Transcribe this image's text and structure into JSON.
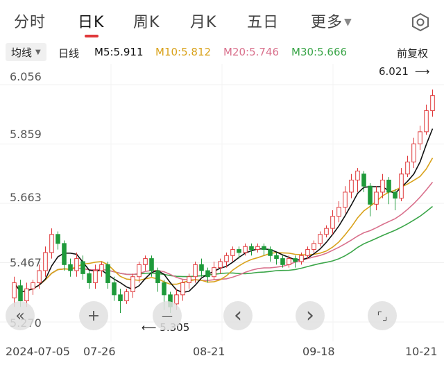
{
  "tabs": [
    {
      "label": "分时",
      "active": false
    },
    {
      "label": "日K",
      "active": true
    },
    {
      "label": "周K",
      "active": false
    },
    {
      "label": "月K",
      "active": false
    },
    {
      "label": "五日",
      "active": false
    },
    {
      "label": "更多",
      "active": false
    }
  ],
  "settings_icon": "hexagon-gear-icon",
  "indicator_bar": {
    "selector_label": "均线",
    "period_label": "日线",
    "ma5": {
      "label": "M5:5.911",
      "color": "#111111"
    },
    "ma10": {
      "label": "M10:5.812",
      "color": "#d9a21b"
    },
    "ma20": {
      "label": "M20:5.746",
      "color": "#d9708c"
    },
    "ma30": {
      "label": "M30:5.666",
      "color": "#3aa548"
    },
    "adjust_label": "前复权"
  },
  "colors": {
    "up": "#e0383a",
    "down": "#1e9a3a",
    "accent": "#e0383a"
  },
  "chart_data": {
    "type": "candlestick",
    "y_ticks": [
      "6.056",
      "5.859",
      "5.663",
      "5.467",
      "5.270"
    ],
    "x_ticks": [
      "2024-07-05",
      "07-26",
      "08-21",
      "09-18",
      "10-21"
    ],
    "annotations": {
      "high": "6.021",
      "low": "5.305"
    },
    "ylim": [
      5.27,
      6.056
    ],
    "candles": [
      [
        5.35,
        5.4,
        5.32,
        5.42
      ],
      [
        5.39,
        5.34,
        5.32,
        5.41
      ],
      [
        5.34,
        5.38,
        5.32,
        5.4
      ],
      [
        5.38,
        5.4,
        5.36,
        5.41
      ],
      [
        5.4,
        5.44,
        5.38,
        5.46
      ],
      [
        5.44,
        5.5,
        5.42,
        5.52
      ],
      [
        5.5,
        5.56,
        5.48,
        5.58
      ],
      [
        5.56,
        5.53,
        5.51,
        5.57
      ],
      [
        5.53,
        5.46,
        5.44,
        5.54
      ],
      [
        5.46,
        5.44,
        5.42,
        5.48
      ],
      [
        5.44,
        5.48,
        5.42,
        5.5
      ],
      [
        5.47,
        5.43,
        5.41,
        5.49
      ],
      [
        5.43,
        5.4,
        5.38,
        5.44
      ],
      [
        5.4,
        5.44,
        5.38,
        5.46
      ],
      [
        5.44,
        5.46,
        5.42,
        5.47
      ],
      [
        5.46,
        5.4,
        5.38,
        5.47
      ],
      [
        5.4,
        5.36,
        5.34,
        5.42
      ],
      [
        5.36,
        5.34,
        5.3,
        5.38
      ],
      [
        5.34,
        5.37,
        5.33,
        5.38
      ],
      [
        5.37,
        5.42,
        5.35,
        5.43
      ],
      [
        5.42,
        5.46,
        5.4,
        5.47
      ],
      [
        5.46,
        5.48,
        5.44,
        5.49
      ],
      [
        5.48,
        5.44,
        5.42,
        5.49
      ],
      [
        5.44,
        5.4,
        5.37,
        5.45
      ],
      [
        5.4,
        5.36,
        5.31,
        5.41
      ],
      [
        5.36,
        5.32,
        5.3,
        5.37
      ],
      [
        5.33,
        5.36,
        5.31,
        5.38
      ],
      [
        5.36,
        5.4,
        5.34,
        5.41
      ],
      [
        5.4,
        5.42,
        5.38,
        5.43
      ],
      [
        5.42,
        5.46,
        5.4,
        5.47
      ],
      [
        5.46,
        5.44,
        5.42,
        5.48
      ],
      [
        5.44,
        5.42,
        5.4,
        5.45
      ],
      [
        5.42,
        5.45,
        5.41,
        5.47
      ],
      [
        5.45,
        5.47,
        5.43,
        5.48
      ],
      [
        5.47,
        5.49,
        5.45,
        5.5
      ],
      [
        5.49,
        5.51,
        5.47,
        5.52
      ],
      [
        5.51,
        5.5,
        5.48,
        5.52
      ],
      [
        5.5,
        5.52,
        5.49,
        5.53
      ],
      [
        5.52,
        5.51,
        5.49,
        5.53
      ],
      [
        5.51,
        5.52,
        5.5,
        5.53
      ],
      [
        5.52,
        5.51,
        5.49,
        5.53
      ],
      [
        5.51,
        5.49,
        5.47,
        5.52
      ],
      [
        5.49,
        5.48,
        5.46,
        5.5
      ],
      [
        5.48,
        5.46,
        5.45,
        5.49
      ],
      [
        5.46,
        5.48,
        5.45,
        5.49
      ],
      [
        5.48,
        5.47,
        5.45,
        5.49
      ],
      [
        5.47,
        5.49,
        5.46,
        5.5
      ],
      [
        5.49,
        5.51,
        5.48,
        5.52
      ],
      [
        5.51,
        5.53,
        5.5,
        5.54
      ],
      [
        5.53,
        5.56,
        5.52,
        5.57
      ],
      [
        5.56,
        5.58,
        5.55,
        5.59
      ],
      [
        5.58,
        5.62,
        5.56,
        5.64
      ],
      [
        5.62,
        5.65,
        5.6,
        5.67
      ],
      [
        5.65,
        5.7,
        5.63,
        5.72
      ],
      [
        5.7,
        5.74,
        5.68,
        5.76
      ],
      [
        5.74,
        5.77,
        5.7,
        5.78
      ],
      [
        5.76,
        5.72,
        5.7,
        5.77
      ],
      [
        5.72,
        5.66,
        5.62,
        5.73
      ],
      [
        5.66,
        5.7,
        5.64,
        5.72
      ],
      [
        5.7,
        5.74,
        5.68,
        5.76
      ],
      [
        5.74,
        5.7,
        5.66,
        5.75
      ],
      [
        5.7,
        5.68,
        5.64,
        5.71
      ],
      [
        5.68,
        5.76,
        5.67,
        5.78
      ],
      [
        5.76,
        5.8,
        5.75,
        5.82
      ],
      [
        5.8,
        5.86,
        5.78,
        5.88
      ],
      [
        5.86,
        5.9,
        5.84,
        5.92
      ],
      [
        5.9,
        5.97,
        5.89,
        5.99
      ],
      [
        5.97,
        6.02,
        5.95,
        6.04
      ]
    ]
  },
  "nav_buttons": [
    {
      "name": "scroll-left-button",
      "icon": "double-chevron-left-icon",
      "glyph": "«"
    },
    {
      "name": "zoom-in-button",
      "icon": "plus-icon",
      "glyph": "+"
    },
    {
      "name": "zoom-out-button",
      "icon": "minus-icon",
      "glyph": "—"
    },
    {
      "name": "prev-button",
      "icon": "chevron-left-icon",
      "glyph": "‹"
    },
    {
      "name": "next-button",
      "icon": "chevron-right-icon",
      "glyph": "›"
    },
    {
      "name": "fullscreen-button",
      "icon": "fullscreen-corners-icon",
      "glyph": "⌜⌟"
    }
  ]
}
